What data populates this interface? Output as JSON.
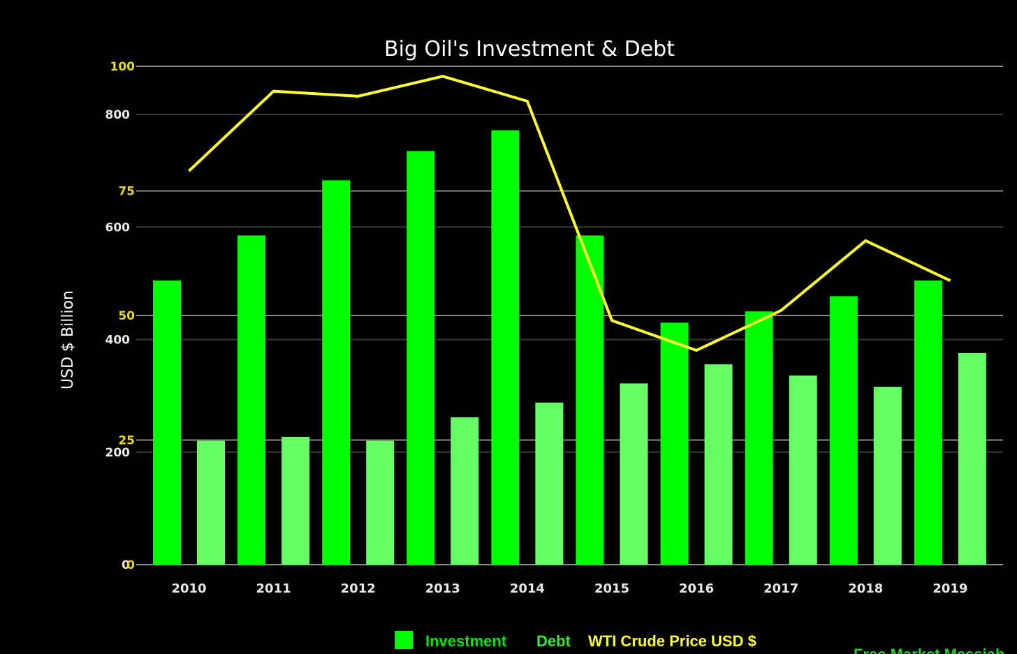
{
  "chart_data": {
    "type": "bar",
    "title": "Big Oil's Investment & Debt",
    "ylabel": "USD $ Billion",
    "categories": [
      "2010",
      "2011",
      "2012",
      "2013",
      "2014",
      "2015",
      "2016",
      "2017",
      "2018",
      "2019"
    ],
    "series": [
      {
        "name": "Investment",
        "type": "bar",
        "axis": "left",
        "color": "#00ff00",
        "values": [
          505,
          585,
          683,
          735,
          772,
          585,
          430,
          450,
          477,
          505
        ]
      },
      {
        "name": "Debt",
        "type": "bar",
        "axis": "left",
        "color": "#66ff66",
        "values": [
          220,
          227,
          220,
          262,
          288,
          322,
          356,
          336,
          316,
          376
        ]
      },
      {
        "name": "WTI Crude Price USD $",
        "type": "line",
        "axis": "right",
        "color": "#ffff33",
        "values": [
          79,
          95,
          94,
          98,
          93,
          49,
          43,
          51,
          65,
          57
        ]
      }
    ],
    "left_axis": {
      "ticks": [
        0,
        200,
        400,
        600,
        800
      ],
      "ylim": [
        0,
        800
      ]
    },
    "right_axis": {
      "ticks": [
        0,
        25,
        50,
        75,
        100
      ],
      "ylim": [
        0,
        100
      ]
    },
    "grid": true,
    "legend_position": "bottom"
  },
  "legend": {
    "investment": "Investment",
    "debt": "Debt",
    "wti": "WTI Crude Price USD $"
  },
  "watermark": "Free Market Messiah"
}
